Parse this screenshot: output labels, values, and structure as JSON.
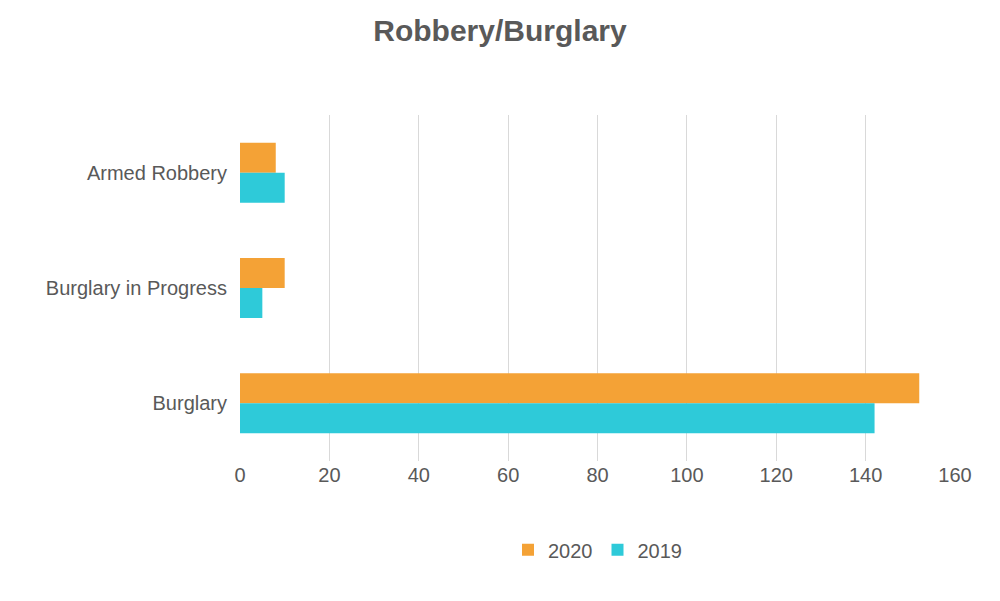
{
  "chart_data": {
    "type": "bar",
    "orientation": "horizontal",
    "title": "Robbery/Burglary",
    "categories": [
      "Armed Robbery",
      "Burglary in Progress",
      "Burglary"
    ],
    "series": [
      {
        "name": "2020",
        "color": "#f4a236",
        "values": [
          8,
          10,
          152
        ]
      },
      {
        "name": "2019",
        "color": "#2ecad9",
        "values": [
          10,
          5,
          142
        ]
      }
    ],
    "xlim": [
      0,
      160
    ],
    "xticks": [
      0,
      20,
      40,
      60,
      80,
      100,
      120,
      140,
      160
    ],
    "grid": true,
    "legend": "bottom"
  }
}
